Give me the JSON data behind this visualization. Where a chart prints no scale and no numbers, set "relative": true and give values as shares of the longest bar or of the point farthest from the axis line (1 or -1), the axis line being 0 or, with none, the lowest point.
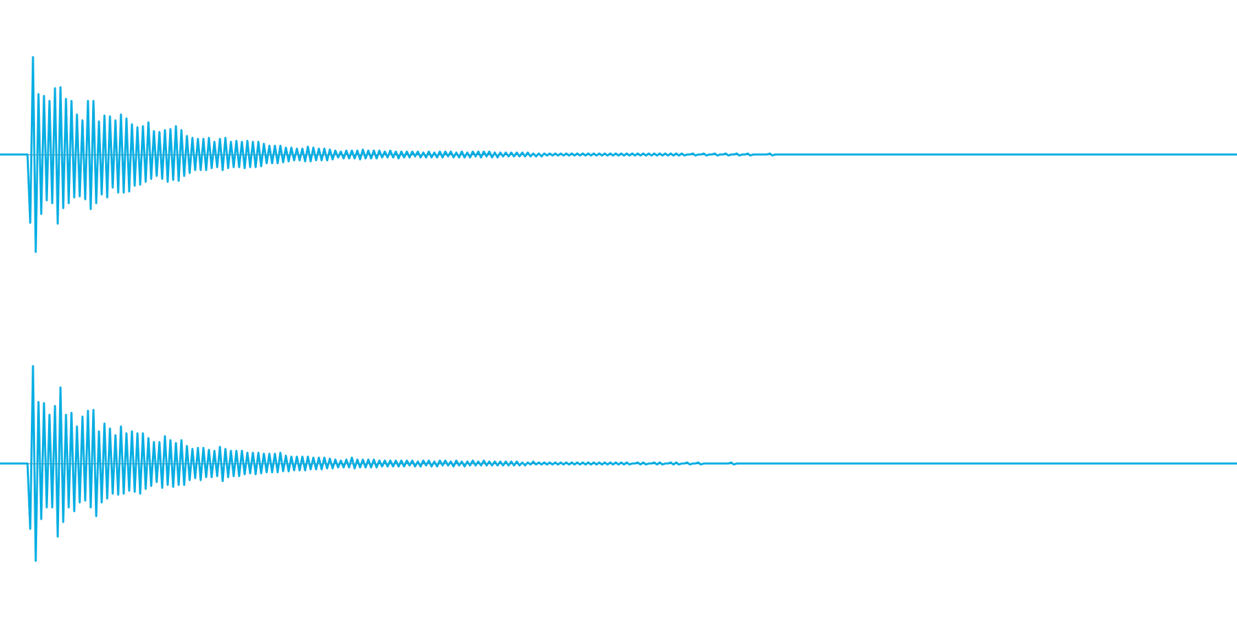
{
  "chart_data": [
    {
      "type": "line",
      "relative": true,
      "tick_labels": false,
      "color": "#08aee3",
      "categories": [
        null,
        null,
        null,
        null,
        null,
        null,
        null,
        null,
        null,
        null,
        null,
        null,
        null,
        null,
        null,
        null,
        null,
        null,
        null,
        null,
        null,
        null,
        null,
        null,
        null,
        null,
        null,
        null,
        null,
        null,
        null,
        null,
        null,
        null,
        null,
        null,
        null,
        null,
        null,
        null,
        null,
        null,
        null,
        null,
        null,
        null,
        null,
        null,
        null,
        null,
        null,
        null,
        null,
        null,
        null,
        null,
        null,
        null,
        null,
        null,
        null,
        null,
        null,
        null,
        null,
        null,
        null,
        null,
        null,
        null,
        null,
        null,
        null,
        null,
        null,
        null,
        null,
        null,
        null,
        null,
        null,
        null,
        null,
        null,
        null,
        null,
        null,
        null,
        null,
        null,
        null,
        null,
        null,
        null,
        null,
        null,
        null,
        null,
        null,
        null,
        null,
        null,
        null,
        null,
        null,
        null,
        null,
        null,
        null,
        null,
        null,
        null,
        null,
        null,
        null,
        null,
        null,
        null,
        null,
        null,
        null,
        null,
        null,
        null,
        null,
        null,
        null,
        null,
        null,
        null,
        null,
        null,
        null,
        null,
        null,
        null,
        null,
        null,
        null,
        null,
        null,
        null,
        null,
        null,
        null,
        null,
        null,
        null,
        null,
        null,
        null,
        null,
        null,
        null,
        null,
        null,
        null,
        null,
        null,
        null,
        null,
        null,
        null,
        null,
        null,
        null,
        null,
        null,
        null,
        null,
        null,
        null,
        null,
        null,
        null,
        null,
        null,
        null,
        null,
        null,
        null,
        null,
        null,
        null,
        null,
        null,
        null,
        null,
        null,
        null,
        null,
        null,
        null,
        null,
        null,
        null,
        null,
        null,
        null,
        null,
        null,
        null,
        null,
        null,
        null,
        null,
        null,
        null,
        null,
        null,
        null,
        null,
        null,
        null,
        null,
        null,
        null,
        null,
        null,
        null,
        null,
        null,
        null,
        null,
        null,
        null,
        null,
        null,
        null,
        null,
        null,
        null,
        null,
        null,
        null,
        null,
        null,
        null,
        null,
        null,
        null,
        null,
        null,
        null,
        null,
        null,
        null,
        null,
        null,
        null,
        null,
        null,
        null,
        null,
        null,
        null,
        null,
        null,
        null,
        null,
        null,
        null,
        null,
        null,
        null,
        null,
        null,
        null,
        null,
        null,
        null,
        null,
        null,
        null,
        null,
        null,
        null,
        null,
        null,
        null,
        null,
        null,
        null,
        null,
        null,
        null,
        null,
        null,
        null,
        null,
        null,
        null,
        null,
        null,
        null,
        null,
        null,
        null,
        null,
        null,
        null,
        null,
        null,
        null,
        null,
        null,
        null,
        null,
        null,
        null,
        null,
        null,
        null,
        null,
        null,
        null,
        null,
        null,
        null,
        null,
        null,
        null,
        null,
        null,
        null,
        null,
        null,
        null,
        null,
        null,
        null,
        null,
        null,
        null,
        null,
        null,
        null,
        null,
        null,
        null,
        null,
        null,
        null,
        null,
        null,
        null,
        null,
        null,
        null,
        null,
        null,
        null,
        null,
        null,
        null,
        null,
        null,
        null,
        null,
        null,
        null,
        null,
        null,
        null,
        null,
        null,
        null,
        null,
        null,
        null,
        null,
        null,
        null,
        null,
        null,
        null,
        null,
        null,
        null,
        null,
        null,
        null,
        null,
        null,
        null,
        null,
        null,
        null,
        null,
        null,
        null,
        null,
        null,
        null,
        null,
        null,
        null,
        null,
        null,
        null,
        null,
        null,
        null,
        null,
        null,
        null,
        null,
        null,
        null,
        null,
        null,
        null,
        null,
        null,
        null,
        null,
        null,
        null,
        null,
        null,
        null,
        null,
        null,
        null,
        null,
        null,
        null,
        null,
        null,
        null,
        null,
        null,
        null,
        null,
        null,
        null,
        null,
        null,
        null,
        null,
        null,
        null,
        null,
        null,
        null,
        null,
        null,
        null,
        null,
        null,
        null
      ],
      "values": [
        0,
        0,
        0,
        0,
        0,
        0,
        0,
        0,
        0,
        0,
        0,
        -0.7,
        1,
        -1,
        0.62,
        -0.61,
        0.6,
        -0.47,
        0.55,
        -0.5,
        0.68,
        -0.71,
        0.69,
        -0.55,
        0.57,
        -0.5,
        0.55,
        -0.44,
        0.41,
        -0.43,
        0.35,
        -0.46,
        0.55,
        -0.56,
        0.55,
        -0.5,
        0.34,
        -0.41,
        0.4,
        -0.44,
        0.39,
        -0.34,
        0.35,
        -0.39,
        0.41,
        -0.39,
        0.37,
        -0.38,
        0.31,
        -0.32,
        0.28,
        -0.31,
        0.29,
        -0.28,
        0.33,
        -0.25,
        0.24,
        -0.22,
        0.23,
        -0.25,
        0.25,
        -0.28,
        0.26,
        -0.26,
        0.29,
        -0.27,
        0.25,
        -0.22,
        0.19,
        -0.19,
        0.17,
        -0.16,
        0.16,
        -0.16,
        0.16,
        -0.16,
        0.17,
        -0.14,
        0.13,
        -0.13,
        0.16,
        -0.16,
        0.17,
        -0.14,
        0.13,
        -0.13,
        0.14,
        -0.13,
        0.13,
        -0.14,
        0.14,
        -0.13,
        0.13,
        -0.13,
        0.13,
        -0.12,
        0.11,
        -0.09,
        0.09,
        -0.09,
        0.09,
        -0.09,
        0.09,
        -0.08,
        0.07,
        -0.07,
        0.07,
        -0.06,
        0.06,
        -0.06,
        0.06,
        -0.07,
        0.08,
        -0.07,
        0.07,
        -0.06,
        0.06,
        -0.06,
        0.06,
        -0.06,
        0.05,
        -0.05,
        0.04,
        -0.03,
        0.03,
        -0.04,
        0.04,
        -0.04,
        0.04,
        -0.04,
        0.04,
        -0.05,
        0.05,
        -0.04,
        0.04,
        -0.04,
        0.04,
        -0.04,
        0.04,
        -0.03,
        0.03,
        -0.03,
        0.04,
        -0.03,
        0.03,
        -0.04,
        0.03,
        -0.03,
        0.03,
        -0.03,
        0.03,
        -0.02,
        0.03,
        -0.03,
        0.02,
        -0.03,
        0.03,
        -0.03,
        0.02,
        -0.03,
        0.03,
        -0.03,
        0.03,
        -0.02,
        0.03,
        -0.03,
        0.02,
        -0.03,
        0.03,
        -0.03,
        0.02,
        -0.03,
        0.03,
        -0.02,
        0.03,
        -0.03,
        0.03,
        -0.02,
        0.03,
        -0.03,
        0.02,
        -0.03,
        0.02,
        -0.02,
        0.02,
        -0.02,
        0.02,
        -0.02,
        0.02,
        -0.02,
        0.02,
        -0.02,
        0.02,
        -0.02,
        0.01,
        -0.02,
        0.01,
        -0.02,
        0.01,
        -0.01,
        0.01,
        -0.01,
        0.01,
        -0.01,
        0.01,
        -0.01,
        0.01,
        -0.01,
        0.01,
        -0.01,
        0.01,
        -0.01,
        0.01,
        -0.01,
        0.01,
        -0.01,
        0.01,
        -0.01,
        0.01,
        -0.01,
        0.01,
        -0.01,
        0.01,
        -0.01,
        0.01,
        -0.01,
        0.01,
        -0.01,
        0.01,
        -0.01,
        0.01,
        -0.01,
        0.01,
        -0.01,
        0.01,
        -0.01,
        0.01,
        -0.01,
        0.01,
        -0.01,
        0.01,
        -0.01,
        0.01,
        -0.01,
        0.01,
        -0.01,
        0.01,
        -0.01,
        0.01,
        -0.01,
        0,
        0,
        0.01,
        -0.01,
        0,
        0,
        0.01,
        -0.01,
        0,
        0,
        0.01,
        -0.01,
        0,
        0,
        0.01,
        -0.01,
        0,
        0,
        0.01,
        -0.01,
        0,
        0,
        0.01,
        -0.01,
        0,
        0,
        0,
        0,
        0,
        0,
        0.01,
        -0.01,
        0,
        0,
        0,
        0,
        0,
        0,
        0,
        0,
        0,
        0,
        0,
        0,
        0,
        0,
        0,
        0,
        0,
        0,
        0,
        0,
        0,
        0,
        0,
        0,
        0,
        0,
        0,
        0,
        0,
        0,
        0,
        0,
        0,
        0,
        0,
        0,
        0,
        0,
        0,
        0,
        0,
        0,
        0,
        0,
        0,
        0,
        0,
        0,
        0,
        0,
        0,
        0,
        0,
        0,
        0,
        0,
        0,
        0,
        0,
        0,
        0,
        0,
        0,
        0,
        0,
        0,
        0,
        0,
        0,
        0,
        0,
        0,
        0,
        0,
        0,
        0,
        0,
        0,
        0,
        0,
        0,
        0,
        0,
        0,
        0,
        0,
        0,
        0,
        0,
        0,
        0,
        0,
        0,
        0,
        0,
        0,
        0,
        0,
        0,
        0,
        0,
        0,
        0,
        0,
        0,
        0,
        0,
        0,
        0,
        0,
        0,
        0,
        0,
        0,
        0,
        0,
        0,
        0,
        0,
        0,
        0,
        0,
        0,
        0,
        0,
        0,
        0,
        0,
        0,
        0,
        0,
        0,
        0,
        0,
        0,
        0,
        0,
        0,
        0,
        0,
        0,
        0,
        0,
        0,
        0,
        0,
        0,
        0,
        0,
        0,
        0,
        0,
        0,
        0,
        0,
        0,
        0,
        0,
        0,
        0,
        0,
        0,
        0,
        0,
        0,
        0,
        0,
        0,
        0
      ]
    },
    {
      "type": "line",
      "relative": true,
      "tick_labels": false,
      "color": "#08aee3",
      "categories": [
        null,
        null,
        null,
        null,
        null,
        null,
        null,
        null,
        null,
        null,
        null,
        null,
        null,
        null,
        null,
        null,
        null,
        null,
        null,
        null,
        null,
        null,
        null,
        null,
        null,
        null,
        null,
        null,
        null,
        null,
        null,
        null,
        null,
        null,
        null,
        null,
        null,
        null,
        null,
        null,
        null,
        null,
        null,
        null,
        null,
        null,
        null,
        null,
        null,
        null,
        null,
        null,
        null,
        null,
        null,
        null,
        null,
        null,
        null,
        null,
        null,
        null,
        null,
        null,
        null,
        null,
        null,
        null,
        null,
        null,
        null,
        null,
        null,
        null,
        null,
        null,
        null,
        null,
        null,
        null,
        null,
        null,
        null,
        null,
        null,
        null,
        null,
        null,
        null,
        null,
        null,
        null,
        null,
        null,
        null,
        null,
        null,
        null,
        null,
        null,
        null,
        null,
        null,
        null,
        null,
        null,
        null,
        null,
        null,
        null,
        null,
        null,
        null,
        null,
        null,
        null,
        null,
        null,
        null,
        null,
        null,
        null,
        null,
        null,
        null,
        null,
        null,
        null,
        null,
        null,
        null,
        null,
        null,
        null,
        null,
        null,
        null,
        null,
        null,
        null,
        null,
        null,
        null,
        null,
        null,
        null,
        null,
        null,
        null,
        null,
        null,
        null,
        null,
        null,
        null,
        null,
        null,
        null,
        null,
        null,
        null,
        null,
        null,
        null,
        null,
        null,
        null,
        null,
        null,
        null,
        null,
        null,
        null,
        null,
        null,
        null,
        null,
        null,
        null,
        null,
        null,
        null,
        null,
        null,
        null,
        null,
        null,
        null,
        null,
        null,
        null,
        null,
        null,
        null,
        null,
        null,
        null,
        null,
        null,
        null,
        null,
        null,
        null,
        null,
        null,
        null,
        null,
        null,
        null,
        null,
        null,
        null,
        null,
        null,
        null,
        null,
        null,
        null,
        null,
        null,
        null,
        null,
        null,
        null,
        null,
        null,
        null,
        null,
        null,
        null,
        null,
        null,
        null,
        null,
        null,
        null,
        null,
        null,
        null,
        null,
        null,
        null,
        null,
        null,
        null,
        null,
        null,
        null,
        null,
        null,
        null,
        null,
        null,
        null,
        null,
        null,
        null,
        null,
        null,
        null,
        null,
        null,
        null,
        null,
        null,
        null,
        null,
        null,
        null,
        null,
        null,
        null,
        null,
        null,
        null,
        null,
        null,
        null,
        null,
        null,
        null,
        null,
        null,
        null,
        null,
        null,
        null,
        null,
        null,
        null,
        null,
        null,
        null,
        null,
        null,
        null,
        null,
        null,
        null,
        null,
        null,
        null,
        null,
        null,
        null,
        null,
        null,
        null,
        null,
        null,
        null,
        null,
        null,
        null,
        null,
        null,
        null,
        null,
        null,
        null,
        null,
        null,
        null,
        null,
        null,
        null,
        null,
        null,
        null,
        null,
        null,
        null,
        null,
        null,
        null,
        null,
        null,
        null,
        null,
        null,
        null,
        null,
        null,
        null,
        null,
        null,
        null,
        null,
        null,
        null,
        null,
        null,
        null,
        null,
        null,
        null,
        null,
        null,
        null,
        null,
        null,
        null,
        null,
        null,
        null,
        null,
        null,
        null,
        null,
        null,
        null,
        null,
        null,
        null,
        null,
        null,
        null,
        null,
        null,
        null,
        null,
        null,
        null,
        null,
        null,
        null,
        null,
        null,
        null,
        null,
        null,
        null,
        null,
        null,
        null,
        null,
        null,
        null,
        null,
        null,
        null,
        null,
        null,
        null,
        null,
        null,
        null,
        null,
        null,
        null,
        null,
        null,
        null,
        null,
        null,
        null,
        null,
        null,
        null,
        null,
        null,
        null,
        null,
        null,
        null,
        null,
        null,
        null,
        null,
        null,
        null,
        null,
        null,
        null,
        null,
        null,
        null,
        null,
        null,
        null,
        null,
        null,
        null,
        null,
        null,
        null,
        null,
        null,
        null,
        null,
        null
      ],
      "values": [
        0,
        0,
        0,
        0,
        0,
        0,
        0,
        0,
        0,
        0,
        0,
        -0.67,
        1,
        -1,
        0.63,
        -0.57,
        0.62,
        -0.45,
        0.5,
        -0.45,
        0.59,
        -0.75,
        0.78,
        -0.6,
        0.5,
        -0.45,
        0.52,
        -0.49,
        0.38,
        -0.4,
        0.48,
        -0.38,
        0.54,
        -0.45,
        0.55,
        -0.54,
        0.33,
        -0.4,
        0.41,
        -0.36,
        0.36,
        -0.31,
        0.29,
        -0.32,
        0.38,
        -0.31,
        0.31,
        -0.28,
        0.33,
        -0.29,
        0.31,
        -0.31,
        0.31,
        -0.26,
        0.26,
        -0.23,
        0.22,
        -0.19,
        0.22,
        -0.25,
        0.28,
        -0.22,
        0.24,
        -0.24,
        0.21,
        -0.22,
        0.24,
        -0.22,
        0.18,
        -0.17,
        0.15,
        -0.15,
        0.16,
        -0.17,
        0.16,
        -0.14,
        0.14,
        -0.14,
        0.13,
        -0.13,
        0.17,
        -0.18,
        0.15,
        -0.14,
        0.13,
        -0.13,
        0.13,
        -0.13,
        0.13,
        -0.11,
        0.11,
        -0.1,
        0.11,
        -0.11,
        0.11,
        -0.1,
        0.1,
        -0.09,
        0.1,
        -0.09,
        0.1,
        -0.09,
        0.11,
        -0.08,
        0.08,
        -0.08,
        0.07,
        -0.07,
        0.07,
        -0.07,
        0.07,
        -0.07,
        0.07,
        -0.06,
        0.06,
        -0.06,
        0.06,
        -0.06,
        0.06,
        -0.05,
        0.05,
        -0.05,
        0.04,
        -0.04,
        0.03,
        -0.04,
        0.04,
        -0.04,
        0.06,
        -0.05,
        0.04,
        -0.04,
        0.04,
        -0.04,
        0.04,
        -0.04,
        0.04,
        -0.04,
        0.03,
        -0.03,
        0.03,
        -0.03,
        0.03,
        -0.03,
        0.03,
        -0.03,
        0.03,
        -0.03,
        0.03,
        -0.02,
        0.03,
        -0.03,
        0.02,
        -0.03,
        0.03,
        -0.02,
        0.03,
        -0.03,
        0.02,
        -0.03,
        0.03,
        -0.02,
        0.03,
        -0.02,
        0.02,
        -0.03,
        0.03,
        -0.02,
        0.02,
        -0.03,
        0.02,
        -0.02,
        0.03,
        -0.02,
        0.02,
        -0.02,
        0.03,
        -0.02,
        0.02,
        -0.02,
        0.02,
        -0.02,
        0.02,
        -0.02,
        0.02,
        -0.02,
        0.02,
        -0.02,
        0.02,
        -0.02,
        0.01,
        -0.02,
        0.01,
        -0.01,
        0.02,
        -0.01,
        0.01,
        -0.01,
        0.01,
        -0.01,
        0.01,
        -0.01,
        0.01,
        -0.01,
        0.01,
        -0.01,
        0.01,
        -0.01,
        0.01,
        -0.01,
        0.01,
        -0.01,
        0.01,
        -0.01,
        0.01,
        -0.01,
        0.01,
        -0.01,
        0.01,
        -0.01,
        0.01,
        -0.01,
        0.01,
        -0.01,
        0.01,
        -0.01,
        0.01,
        -0.01,
        0.01,
        -0.01,
        0,
        0,
        0.01,
        -0.01,
        0.01,
        -0.01,
        0,
        0,
        0.01,
        -0.01,
        0.01,
        -0.01,
        0,
        0,
        0.01,
        -0.01,
        0.01,
        -0.01,
        0,
        0,
        0.01,
        -0.01,
        0,
        0,
        0.01,
        -0.01,
        0,
        0,
        0,
        0,
        0,
        0,
        0,
        0,
        0,
        0,
        0.01,
        -0.01,
        0,
        0,
        0,
        0,
        0,
        0,
        0,
        0,
        0,
        0,
        0,
        0,
        0,
        0,
        0,
        0,
        0,
        0,
        0,
        0,
        0,
        0,
        0,
        0,
        0,
        0,
        0,
        0,
        0,
        0,
        0,
        0,
        0,
        0,
        0,
        0,
        0,
        0,
        0,
        0,
        0,
        0,
        0,
        0,
        0,
        0,
        0,
        0,
        0,
        0,
        0,
        0,
        0,
        0,
        0,
        0,
        0,
        0,
        0,
        0,
        0,
        0,
        0,
        0,
        0,
        0,
        0,
        0,
        0,
        0,
        0,
        0,
        0,
        0,
        0,
        0,
        0,
        0,
        0,
        0,
        0,
        0,
        0,
        0,
        0,
        0,
        0,
        0,
        0,
        0,
        0,
        0,
        0,
        0,
        0,
        0,
        0,
        0,
        0,
        0,
        0,
        0,
        0,
        0,
        0,
        0,
        0,
        0,
        0,
        0,
        0,
        0,
        0,
        0,
        0,
        0,
        0,
        0,
        0,
        0,
        0,
        0,
        0,
        0,
        0,
        0,
        0,
        0,
        0,
        0,
        0,
        0,
        0,
        0,
        0,
        0,
        0,
        0,
        0,
        0,
        0,
        0,
        0,
        0,
        0,
        0,
        0,
        0,
        0,
        0,
        0,
        0,
        0,
        0,
        0,
        0,
        0,
        0,
        0,
        0,
        0,
        0,
        0,
        0,
        0,
        0,
        0,
        0,
        0,
        0,
        0,
        0,
        0,
        0,
        0,
        0,
        0,
        0,
        0,
        0,
        0,
        0,
        0
      ]
    }
  ]
}
